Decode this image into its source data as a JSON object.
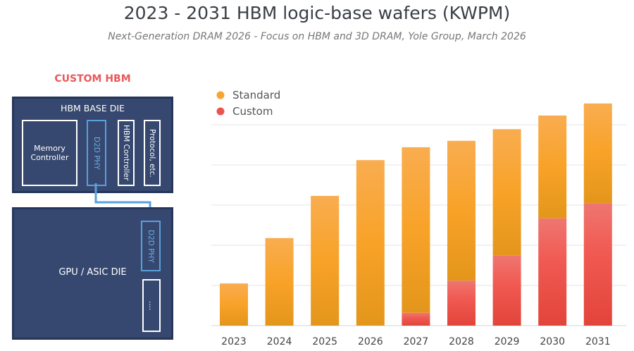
{
  "header": {
    "title": "2023 - 2031 HBM logic-base wafers (KWPM)",
    "subtitle": "Next-Generation DRAM 2026 - Focus on HBM and 3D DRAM, Yole Group, March 2026"
  },
  "diagram": {
    "title": "CUSTOM HBM",
    "base_die": {
      "label": "HBM BASE DIE",
      "blocks": [
        "Memory Controller",
        "D2D PHY",
        "HBM Controller",
        "Protocol, etc."
      ]
    },
    "gpu_die": {
      "label": "GPU / ASIC DIE",
      "blocks": [
        "D2D PHY",
        "...."
      ]
    },
    "colors": {
      "title": "#e9595a",
      "die": "#36486f",
      "phy": "#5aa0dc"
    }
  },
  "chart_data": {
    "type": "bar",
    "stacked": true,
    "title": "2023 - 2031 HBM logic-base wafers (KWPM)",
    "categories": [
      "2023",
      "2024",
      "2025",
      "2026",
      "2027",
      "2028",
      "2029",
      "2030",
      "2031"
    ],
    "series": [
      {
        "name": "Custom",
        "color": "#ec524e",
        "values": [
          0,
          0,
          0,
          0,
          0.32,
          1.12,
          1.74,
          2.67,
          3.05
        ]
      },
      {
        "name": "Standard",
        "color": "#f7a530",
        "values": [
          1.05,
          2.18,
          3.23,
          4.12,
          4.12,
          3.48,
          3.15,
          2.56,
          2.48
        ]
      }
    ],
    "legend": {
      "placement": "top-left",
      "entries": [
        "Standard",
        "Custom"
      ]
    },
    "ylim": [
      0,
      5.6
    ],
    "y_ticks": [
      0,
      1,
      2,
      3,
      4,
      5
    ],
    "y_tick_labels_shown": false,
    "grid": true,
    "value_note": "unlabeled y-axis; values estimated in gridline units"
  }
}
